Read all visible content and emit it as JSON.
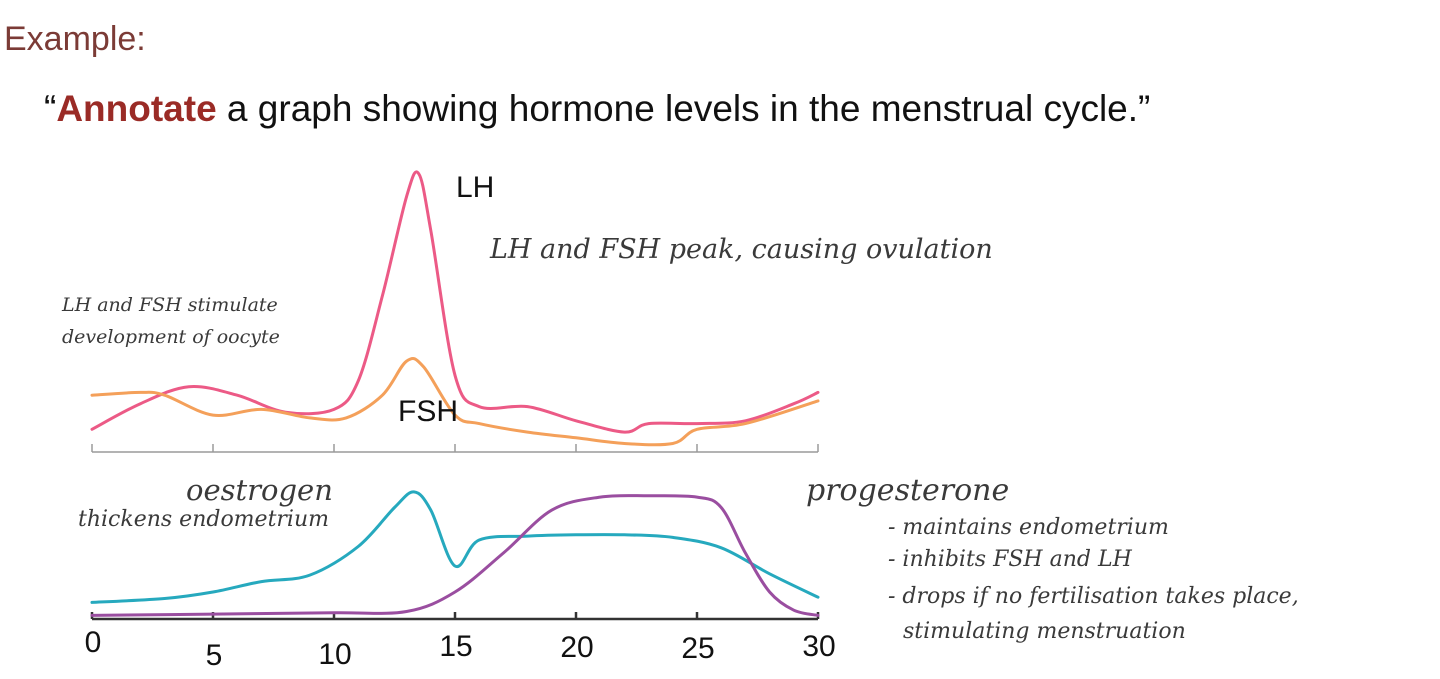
{
  "heading": "Example:",
  "prompt": {
    "open_quote": "“",
    "keyword": "Annotate",
    "rest": " a graph showing hormone levels in the menstrual cycle.”"
  },
  "chart_data": {
    "type": "line",
    "title": "",
    "xlabel": "",
    "ylabel": "",
    "x_ticks": [
      0,
      5,
      10,
      15,
      20,
      25,
      30
    ],
    "xlim": [
      0,
      30
    ],
    "colors": {
      "LH": "#ec5a86",
      "FSH": "#f4a05a",
      "oestrogen": "#26a9be",
      "progesterone": "#9a4ea0"
    },
    "panels": [
      {
        "name": "top",
        "ylim": [
          0,
          1
        ],
        "series": [
          {
            "name": "LH",
            "x": [
              0,
              2,
              4,
              6,
              8,
              10,
              11,
              12,
              13,
              13.5,
              14,
              15,
              16,
              18,
              20,
              22,
              23,
              25,
              27,
              29,
              30
            ],
            "y": [
              0.08,
              0.17,
              0.23,
              0.2,
              0.14,
              0.15,
              0.25,
              0.55,
              0.9,
              0.98,
              0.78,
              0.27,
              0.16,
              0.16,
              0.11,
              0.07,
              0.1,
              0.1,
              0.11,
              0.17,
              0.21
            ]
          },
          {
            "name": "FSH",
            "x": [
              0,
              2,
              3,
              5,
              7,
              9,
              10.5,
              12,
              13,
              13.7,
              15,
              16,
              18,
              20,
              22,
              24,
              25,
              27,
              30
            ],
            "y": [
              0.2,
              0.21,
              0.2,
              0.13,
              0.15,
              0.12,
              0.12,
              0.2,
              0.32,
              0.3,
              0.13,
              0.1,
              0.07,
              0.05,
              0.03,
              0.03,
              0.08,
              0.1,
              0.18
            ]
          }
        ]
      },
      {
        "name": "bottom",
        "ylim": [
          0,
          1
        ],
        "series": [
          {
            "name": "oestrogen",
            "x": [
              0,
              3,
              5,
              7,
              9,
              11,
              12.5,
              13.3,
              14,
              15,
              16,
              18,
              20,
              22,
              24,
              26,
              28,
              30
            ],
            "y": [
              0.12,
              0.15,
              0.2,
              0.28,
              0.33,
              0.55,
              0.85,
              0.97,
              0.83,
              0.4,
              0.6,
              0.63,
              0.64,
              0.64,
              0.62,
              0.54,
              0.34,
              0.16
            ]
          },
          {
            "name": "progesterone",
            "x": [
              0,
              5,
              10,
              13,
              15,
              17,
              19,
              21,
              23,
              25,
              26,
              27,
              28,
              29,
              30
            ],
            "y": [
              0.02,
              0.03,
              0.04,
              0.05,
              0.2,
              0.5,
              0.83,
              0.93,
              0.94,
              0.93,
              0.85,
              0.5,
              0.2,
              0.06,
              0.02
            ]
          }
        ]
      }
    ],
    "labels": {
      "LH": "LH",
      "FSH": "FSH",
      "peak_note": "LH and FSH peak, causing ovulation",
      "early_note_1": "LH and FSH stimulate",
      "early_note_2": "development of oocyte",
      "oestrogen": "oestrogen",
      "oestrogen_note": "thickens endometrium",
      "progesterone": "progesterone",
      "prog_note_1": "- maintains endometrium",
      "prog_note_2": "- inhibits FSH and LH",
      "prog_note_3": "- drops if no fertilisation takes place,",
      "prog_note_4": "stimulating menstruation"
    }
  }
}
